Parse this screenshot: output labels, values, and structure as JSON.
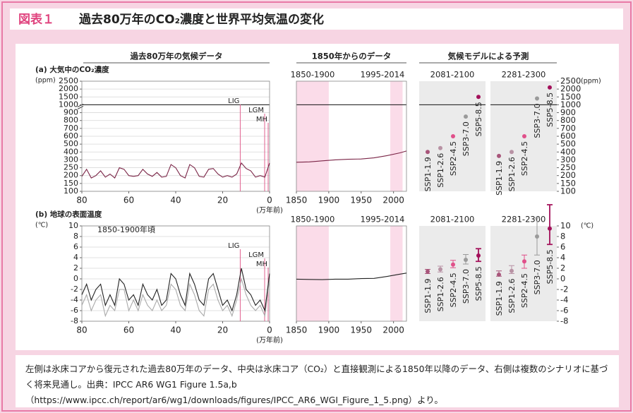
{
  "header": {
    "label": "図表１",
    "title": "過去80万年のCO₂濃度と世界平均気温の変化"
  },
  "sections": [
    "過去80万年の気候データ",
    "1850年からのデータ",
    "気候モデルによる予測"
  ],
  "chart_data": [
    {
      "type": "line",
      "panel_label": "(a) 大気中のCO₂濃度",
      "y_unit": "(ppm)",
      "x_unit": "(万年前)",
      "x": [
        80,
        78,
        76,
        74,
        72,
        70,
        68,
        66,
        64,
        62,
        60,
        58,
        56,
        54,
        52,
        50,
        48,
        46,
        44,
        42,
        40,
        38,
        36,
        34,
        32,
        30,
        28,
        26,
        24,
        22,
        20,
        18,
        16,
        14,
        12,
        10,
        8,
        6,
        4,
        2,
        0
      ],
      "series": [
        {
          "color": "#7a2446",
          "values": [
            195,
            240,
            185,
            200,
            230,
            190,
            210,
            185,
            250,
            240,
            200,
            195,
            200,
            240,
            210,
            195,
            220,
            190,
            195,
            270,
            250,
            200,
            185,
            270,
            250,
            195,
            190,
            240,
            245,
            210,
            190,
            200,
            190,
            210,
            280,
            245,
            230,
            190,
            200,
            190,
            280
          ]
        }
      ],
      "xlim": [
        80,
        0
      ],
      "xticks": [
        80,
        60,
        40,
        20,
        0
      ],
      "ylim": [
        100,
        2500
      ],
      "yticks": [
        100,
        150,
        200,
        250,
        300,
        400,
        500,
        600,
        700,
        800,
        900,
        1000,
        1500,
        2000,
        2500
      ],
      "y_scale": "tick-spaced",
      "axis_break": 1000,
      "grid": true,
      "annotations": [
        {
          "label": "LIG",
          "x": 12.5
        },
        {
          "label": "LGM",
          "x": 2.1
        },
        {
          "label": "MH",
          "x": 0.6
        }
      ],
      "annotation_color": "#e0608f"
    },
    {
      "type": "line",
      "x": [
        1850,
        1870,
        1890,
        1910,
        1930,
        1950,
        1970,
        1990,
        2010,
        2020
      ],
      "series": [
        {
          "color": "#7a2446",
          "values": [
            285,
            287,
            294,
            300,
            307,
            311,
            325,
            354,
            389,
            412
          ]
        }
      ],
      "xlim": [
        1850,
        2020
      ],
      "xticks": [
        1850,
        1900,
        1950,
        2000
      ],
      "periods": [
        {
          "label": "1850-1900",
          "range": [
            1850,
            1900
          ]
        },
        {
          "label": "1995-2014",
          "range": [
            1995,
            2014
          ]
        }
      ]
    },
    {
      "type": "dot-range",
      "y_unit": "(ppm)",
      "scenarios": [
        "SSP1-1.9",
        "SSP1-2.6",
        "SSP2-4.5",
        "SSP3-7.0",
        "SSP5-8.5"
      ],
      "colors": [
        "#a8557a",
        "#b892a4",
        "#e0508a",
        "#9a9a9a",
        "#a3105a"
      ],
      "groups": [
        {
          "period": "2081-2100",
          "values": [
            400,
            450,
            600,
            850,
            1500
          ]
        },
        {
          "period": "2281-2300",
          "values": [
            350,
            400,
            600,
            1400,
            2100
          ]
        }
      ],
      "ylim": [
        100,
        2500
      ],
      "yticks": [
        100,
        150,
        200,
        250,
        300,
        400,
        500,
        600,
        700,
        800,
        900,
        1000,
        1500,
        2000,
        2500
      ],
      "y_scale": "tick-spaced",
      "axis_break": 1000
    },
    {
      "type": "line",
      "panel_label": "(b) 地球の表面温度",
      "y_unit": "(℃)",
      "x_unit": "(万年前)",
      "note": "1850-1900年頃",
      "x": [
        80,
        78,
        76,
        74,
        72,
        70,
        68,
        66,
        64,
        62,
        60,
        58,
        56,
        54,
        52,
        50,
        48,
        46,
        44,
        42,
        40,
        38,
        36,
        34,
        32,
        30,
        28,
        26,
        24,
        22,
        20,
        18,
        16,
        14,
        12,
        10,
        8,
        6,
        4,
        2,
        0
      ],
      "series": [
        {
          "color": "#aaaaaa",
          "values": [
            -5,
            -3,
            -6,
            -4,
            -3,
            -7,
            -5,
            -6,
            -2,
            -2,
            -6,
            -4,
            -6,
            -3,
            -5,
            -6,
            -4,
            -6,
            -5,
            -1,
            -2,
            -5,
            -6,
            -1,
            -3,
            -6,
            -7,
            -2,
            -1,
            -4,
            -6,
            -5,
            -7,
            -4,
            0,
            -3,
            -5,
            -6,
            -5,
            -7,
            0
          ]
        },
        {
          "color": "#222222",
          "values": [
            -3,
            -1,
            -4,
            -2,
            -1,
            -5,
            -3,
            -5,
            0,
            -1,
            -4,
            -3,
            -5,
            -1,
            -3,
            -4,
            -2,
            -5,
            -4,
            1,
            0,
            -3,
            -5,
            1,
            -1,
            -4,
            -5,
            0,
            1,
            -2,
            -5,
            -4,
            -6,
            -3,
            2,
            -2,
            -3,
            -5,
            -4,
            -6,
            1
          ]
        }
      ],
      "xlim": [
        80,
        0
      ],
      "xticks": [
        80,
        60,
        40,
        20,
        0
      ],
      "ylim": [
        -8,
        10
      ],
      "yticks": [
        -8,
        -6,
        -4,
        -2,
        0,
        2,
        4,
        6,
        8,
        10
      ],
      "grid": true,
      "annotations": [
        {
          "label": "LIG",
          "x": 12.5
        },
        {
          "label": "LGM",
          "x": 2.1
        },
        {
          "label": "MH",
          "x": 0.6
        }
      ],
      "annotation_color": "#e0608f"
    },
    {
      "type": "line",
      "x": [
        1850,
        1870,
        1890,
        1910,
        1930,
        1950,
        1970,
        1990,
        2010,
        2020
      ],
      "series": [
        {
          "color": "#222222",
          "values": [
            -0.05,
            -0.1,
            -0.15,
            -0.05,
            -0.05,
            0.05,
            0.1,
            0.45,
            0.9,
            1.1
          ]
        }
      ],
      "xlim": [
        1850,
        2020
      ],
      "xticks": [
        1850,
        1900,
        1950,
        2000
      ],
      "periods": [
        {
          "label": "1850-1900",
          "range": [
            1850,
            1900
          ]
        },
        {
          "label": "1995-2014",
          "range": [
            1995,
            2014
          ]
        }
      ]
    },
    {
      "type": "dot-range",
      "y_unit": "(℃)",
      "scenarios": [
        "SSP1-1.9",
        "SSP1-2.6",
        "SSP2-4.5",
        "SSP3-7.0",
        "SSP5-8.5"
      ],
      "colors": [
        "#a8557a",
        "#b892a4",
        "#e0508a",
        "#9a9a9a",
        "#a3105a"
      ],
      "groups": [
        {
          "period": "2081-2100",
          "values": [
            1.4,
            1.8,
            2.7,
            3.6,
            4.4
          ],
          "low": [
            1.0,
            1.3,
            2.1,
            2.8,
            3.3
          ],
          "high": [
            1.8,
            2.4,
            3.5,
            4.6,
            5.7
          ]
        },
        {
          "period": "2281-2300",
          "values": [
            0.8,
            1.5,
            3.3,
            8.0,
            9.5
          ],
          "low": [
            0.5,
            1.0,
            2.0,
            4.5,
            6.5
          ],
          "high": [
            1.5,
            2.5,
            4.5,
            11.5,
            14.0
          ]
        }
      ],
      "ylim": [
        -8,
        10
      ],
      "yticks": [
        -8,
        -6,
        -4,
        -2,
        0,
        2,
        4,
        6,
        8,
        10
      ]
    }
  ],
  "caption": "左側は氷床コアから復元された過去80万年のデータ、中央は氷床コア（CO₂）と直接観測による1850年以降のデータ、右側は複数のシナリオに基づく将来見通し。出典：IPCC AR6 WG1 Figure 1.5a,b（https://www.ipcc.ch/report/ar6/wg1/downloads/figures/IPCC_AR6_WGI_Figure_1_5.png）より。"
}
